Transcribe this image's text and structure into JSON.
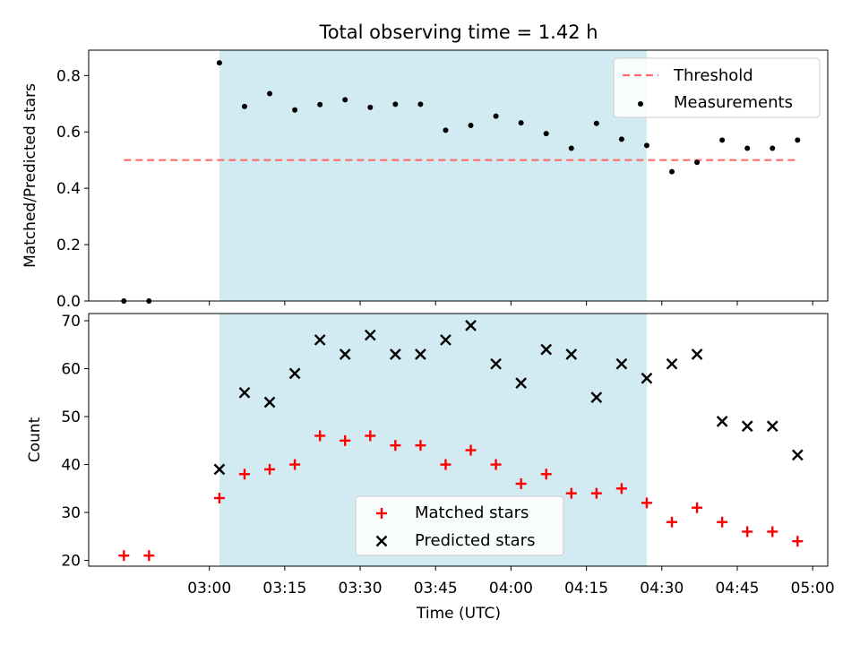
{
  "colors": {
    "shade": "#add8e6",
    "threshold": "#ff6b6b",
    "measurement": "#000000",
    "matched": "#ff0000",
    "predicted": "#000000"
  },
  "chart_data": [
    {
      "type": "scatter",
      "title": "Total observing time = 1.42 h",
      "xlabel": "",
      "ylabel": "Matched/Predicted stars",
      "xlim": [
        "02:36",
        "05:03"
      ],
      "ylim": [
        0,
        0.89
      ],
      "yticks": [
        "0.0",
        "0.2",
        "0.4",
        "0.6",
        "0.8"
      ],
      "ytick_values": [
        0,
        0.2,
        0.4,
        0.6,
        0.8
      ],
      "grid": false,
      "legend_position": "top-right",
      "shaded_interval": [
        "03:02",
        "04:27"
      ],
      "threshold": {
        "name": "Threshold",
        "y": 0.5,
        "x_range": [
          "02:43",
          "04:57"
        ]
      },
      "series": [
        {
          "name": "Measurements",
          "x": [
            "02:43",
            "02:48",
            "03:02",
            "03:07",
            "03:12",
            "03:17",
            "03:22",
            "03:27",
            "03:32",
            "03:37",
            "03:42",
            "03:47",
            "03:52",
            "03:57",
            "04:02",
            "04:07",
            "04:12",
            "04:17",
            "04:22",
            "04:27",
            "04:32",
            "04:37",
            "04:42",
            "04:47",
            "04:52",
            "04:57"
          ],
          "values": [
            0.0,
            0.0,
            0.845,
            0.69,
            0.736,
            0.678,
            0.697,
            0.714,
            0.687,
            0.698,
            0.698,
            0.606,
            0.623,
            0.656,
            0.632,
            0.594,
            0.542,
            0.63,
            0.574,
            0.552,
            0.459,
            0.492,
            0.571,
            0.542,
            0.542,
            0.571
          ]
        }
      ]
    },
    {
      "type": "scatter",
      "title": "",
      "xlabel": "Time (UTC)",
      "ylabel": "Count",
      "xlim": [
        "02:36",
        "05:03"
      ],
      "ylim": [
        18.8,
        71.5
      ],
      "xticks": [
        "03:00",
        "03:15",
        "03:30",
        "03:45",
        "04:00",
        "04:15",
        "04:30",
        "04:45",
        "05:00"
      ],
      "yticks": [
        "20",
        "30",
        "40",
        "50",
        "60",
        "70"
      ],
      "ytick_values": [
        20,
        30,
        40,
        50,
        60,
        70
      ],
      "grid": false,
      "legend_position": "bottom-center",
      "shaded_interval": [
        "03:02",
        "04:27"
      ],
      "series": [
        {
          "name": "Matched stars",
          "marker": "plus",
          "x": [
            "02:43",
            "02:48",
            "03:02",
            "03:07",
            "03:12",
            "03:17",
            "03:22",
            "03:27",
            "03:32",
            "03:37",
            "03:42",
            "03:47",
            "03:52",
            "03:57",
            "04:02",
            "04:07",
            "04:12",
            "04:17",
            "04:22",
            "04:27",
            "04:32",
            "04:37",
            "04:42",
            "04:47",
            "04:52",
            "04:57"
          ],
          "values": [
            21,
            21,
            33,
            38,
            39,
            40,
            46,
            45,
            46,
            44,
            44,
            40,
            43,
            40,
            36,
            38,
            34,
            34,
            35,
            32,
            28,
            31,
            28,
            26,
            26,
            24
          ]
        },
        {
          "name": "Predicted stars",
          "marker": "x",
          "x": [
            "03:02",
            "03:07",
            "03:12",
            "03:17",
            "03:22",
            "03:27",
            "03:32",
            "03:37",
            "03:42",
            "03:47",
            "03:52",
            "03:57",
            "04:02",
            "04:07",
            "04:12",
            "04:17",
            "04:22",
            "04:27",
            "04:32",
            "04:37",
            "04:42",
            "04:47",
            "04:52",
            "04:57"
          ],
          "values": [
            39,
            55,
            53,
            59,
            66,
            63,
            67,
            63,
            63,
            66,
            69,
            61,
            57,
            64,
            63,
            54,
            61,
            58,
            61,
            63,
            49,
            48,
            48,
            42
          ]
        }
      ]
    }
  ]
}
